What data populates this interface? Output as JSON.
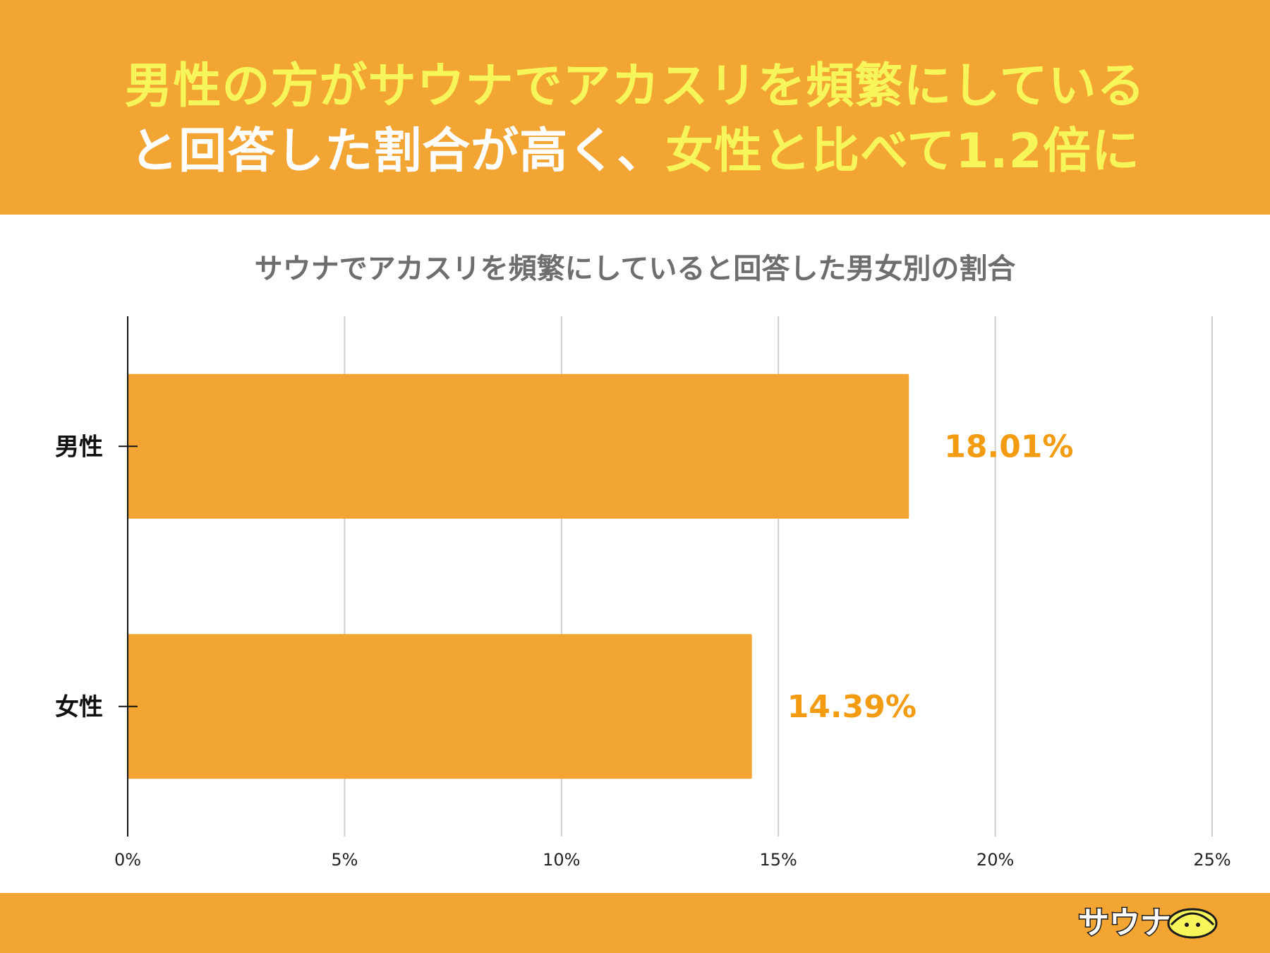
{
  "headline": {
    "line1": "男性の方がサウナでアカスリを頻繁にしている",
    "line2_white": "と回答した割合が高く、",
    "line2_yellow": "女性と比べて1.2倍に"
  },
  "colors": {
    "brand_orange": "#f3a533",
    "headline_yellow": "#f6f65a",
    "data_label": "#f39c12"
  },
  "chart_data": {
    "type": "bar",
    "orientation": "horizontal",
    "title": "サウナでアカスリを頻繁にしていると回答した男女別の割合",
    "categories": [
      "男性",
      "女性"
    ],
    "values": [
      18.01,
      14.39
    ],
    "value_labels": [
      "18.01%",
      "14.39%"
    ],
    "xlim": [
      0,
      25
    ],
    "x_ticks": [
      0,
      5,
      10,
      15,
      20,
      25
    ],
    "x_tick_labels": [
      "0%",
      "5%",
      "10%",
      "15%",
      "20%",
      "25%"
    ],
    "grid": true,
    "legend": "none"
  },
  "logo": {
    "text": "サウナ",
    "icon": "sauna-hat-icon"
  }
}
